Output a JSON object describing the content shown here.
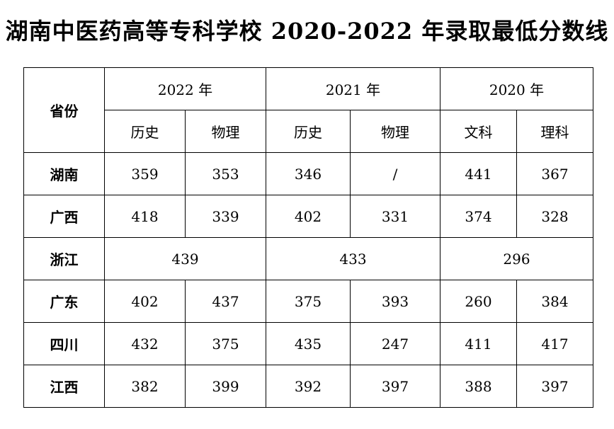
{
  "title": "湖南中医药高等专科学校 2020-2022 年录取最低分数线",
  "table": {
    "province_header": "省份",
    "years": [
      "2022 年",
      "2021 年",
      "2020 年"
    ],
    "subjects": [
      "历史",
      "物理",
      "历史",
      "物理",
      "文科",
      "理科"
    ],
    "rows": [
      {
        "province": "湖南",
        "values": [
          "359",
          "353",
          "346",
          "/",
          "441",
          "367"
        ]
      },
      {
        "province": "广西",
        "values": [
          "418",
          "339",
          "402",
          "331",
          "374",
          "328"
        ]
      },
      {
        "province": "浙江",
        "values": [
          "439",
          "433",
          "296"
        ]
      },
      {
        "province": "广东",
        "values": [
          "402",
          "437",
          "375",
          "393",
          "260",
          "384"
        ]
      },
      {
        "province": "四川",
        "values": [
          "432",
          "375",
          "435",
          "247",
          "411",
          "417"
        ]
      },
      {
        "province": "江西",
        "values": [
          "382",
          "399",
          "392",
          "397",
          "388",
          "397"
        ]
      }
    ]
  }
}
